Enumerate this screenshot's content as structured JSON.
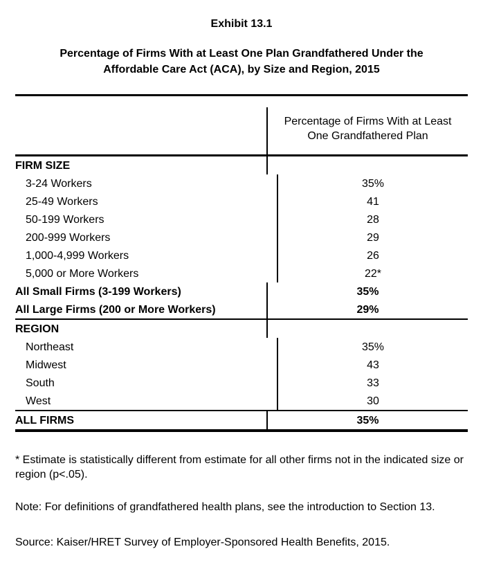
{
  "header": {
    "exhibit_label": "Exhibit 13.1",
    "title_line1": "Percentage of Firms With at Least One Plan Grandfathered Under the",
    "title_line2": "Affordable Care Act (ACA), by Size and Region, 2015"
  },
  "table": {
    "value_column_header": "Percentage of Firms With at Least One Grandfathered Plan",
    "sections": [
      {
        "header": "FIRM SIZE",
        "rows": [
          {
            "label": "3-24 Workers",
            "value": "35%"
          },
          {
            "label": "25-49 Workers",
            "value": "41"
          },
          {
            "label": "50-199 Workers",
            "value": "28"
          },
          {
            "label": "200-999 Workers",
            "value": "29"
          },
          {
            "label": "1,000-4,999 Workers",
            "value": "26"
          },
          {
            "label": "5,000 or More Workers",
            "value": "22*"
          },
          {
            "label": "All Small Firms (3-199 Workers)",
            "value": "35%"
          },
          {
            "label": "All Large Firms (200 or More Workers)",
            "value": "29%"
          }
        ]
      },
      {
        "header": "REGION",
        "rows": [
          {
            "label": "Northeast",
            "value": "35%"
          },
          {
            "label": "Midwest",
            "value": "43"
          },
          {
            "label": "South",
            "value": "33"
          },
          {
            "label": "West",
            "value": "30"
          }
        ]
      }
    ],
    "total_row": {
      "label": "ALL FIRMS",
      "value": "35%"
    }
  },
  "footnotes": {
    "asterisk": "* Estimate is statistically different from estimate for all other firms not in the indicated size or region (p<.05).",
    "note": "Note: For definitions of grandfathered health plans, see the introduction to Section 13.",
    "source": "Source: Kaiser/HRET Survey of Employer-Sponsored Health Benefits, 2015."
  }
}
